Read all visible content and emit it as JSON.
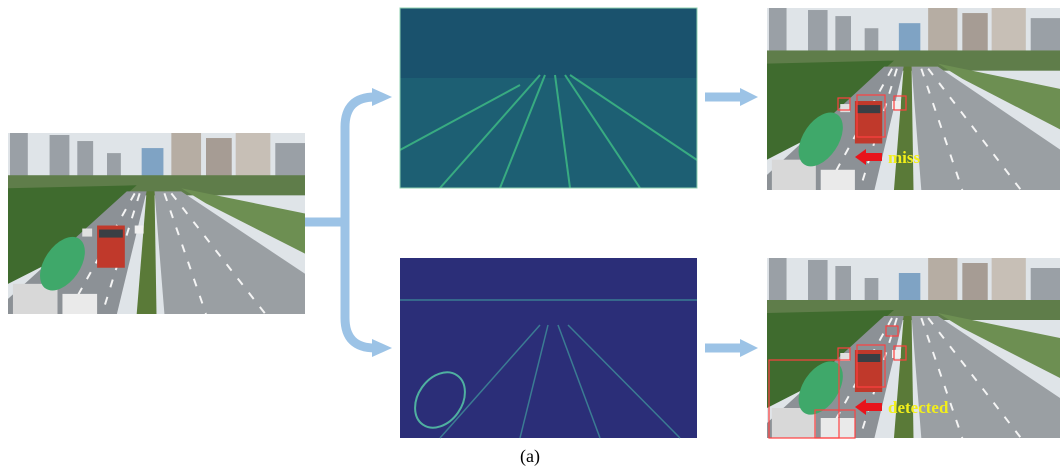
{
  "figure": {
    "top_annotation": "miss",
    "bottom_annotation": "detected",
    "caption": "(a)"
  }
}
